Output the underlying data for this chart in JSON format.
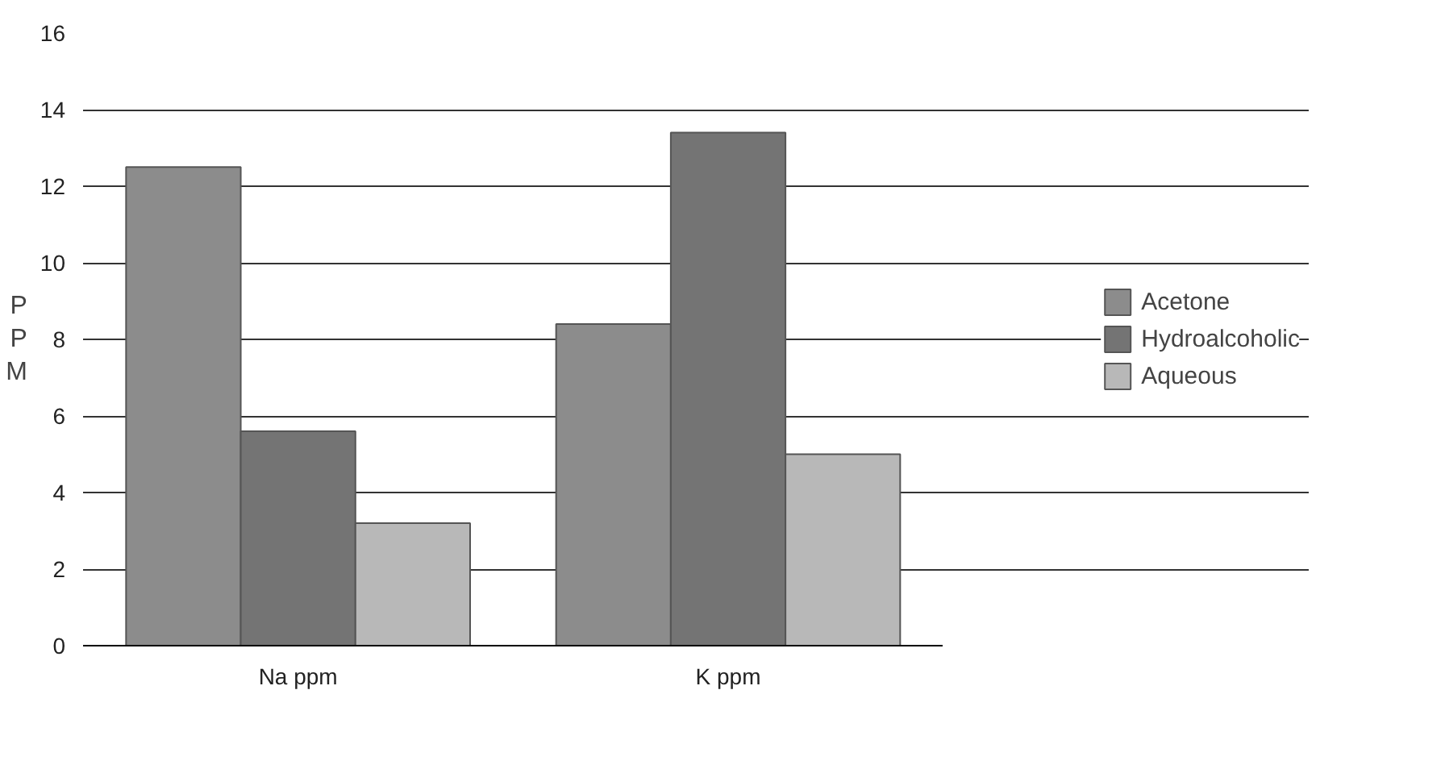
{
  "chart_data": {
    "type": "bar",
    "categories": [
      "Na ppm",
      "K ppm"
    ],
    "ylabel": "PPM",
    "series": [
      {
        "name": "Acetone",
        "color": "#8c8c8c",
        "values": [
          12.5,
          8.4
        ]
      },
      {
        "name": "Hydroalcoholic",
        "color": "#747474",
        "values": [
          5.6,
          13.4
        ]
      },
      {
        "name": "Aqueous",
        "color": "#b8b8b8",
        "values": [
          3.2,
          5.0
        ]
      }
    ],
    "ylim": [
      0,
      16
    ],
    "yticks": [
      0,
      2,
      4,
      6,
      8,
      10,
      12,
      14,
      16
    ],
    "grid": "y",
    "legend": "right"
  }
}
